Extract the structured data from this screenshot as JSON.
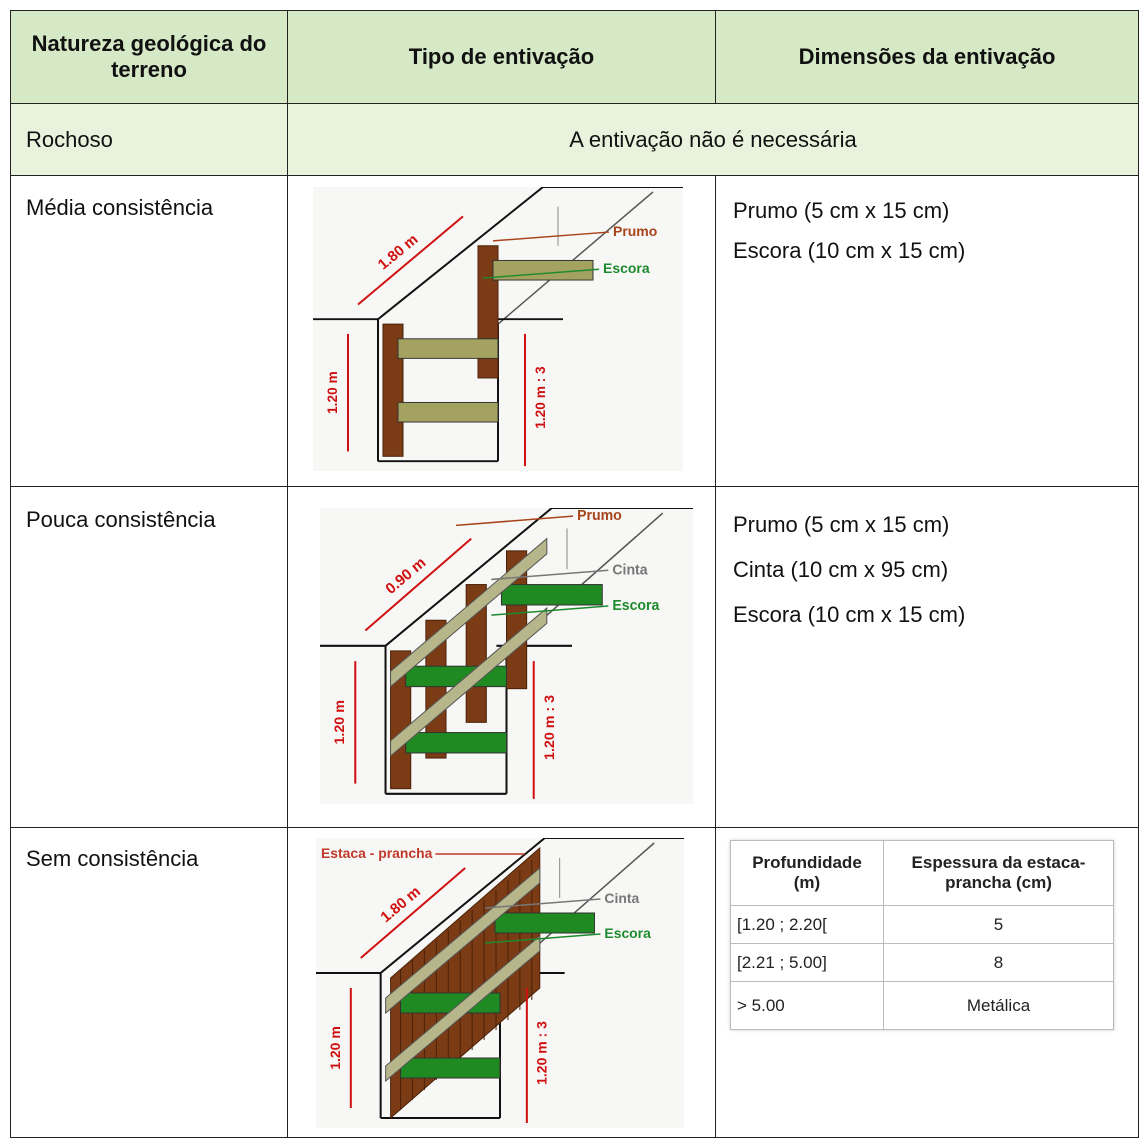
{
  "header": [
    "Natureza geológica do terreno",
    "Tipo de entivação",
    "Dimensões da entivação"
  ],
  "rows": [
    {
      "terrain": "Rochoso",
      "note": "A entivação não é necessária"
    },
    {
      "terrain": "Média consistência",
      "figure": {
        "length": "1.80 m",
        "labels": [
          "Prumo",
          "Escora"
        ],
        "depth": "1.20 m",
        "spacing": "1.20 m : 3"
      },
      "dimensions": [
        "Prumo (5 cm x 15 cm)",
        "Escora (10 cm x 15 cm)"
      ]
    },
    {
      "terrain": "Pouca consistência",
      "figure": {
        "length": "0.90 m",
        "labels": [
          "Prumo",
          "Cinta",
          "Escora"
        ],
        "depth": "1.20 m",
        "spacing": "1.20 m : 3"
      },
      "dimensions": [
        "Prumo (5 cm x 15 cm)",
        "Cinta (10 cm x 95 cm)",
        "Escora (10 cm x 15 cm)"
      ]
    },
    {
      "terrain": "Sem consistência",
      "figure": {
        "length": "1.80 m",
        "labels": [
          "Estaca - prancha",
          "Cinta",
          "Escora"
        ],
        "depth": "1.20 m",
        "spacing": "1.20 m : 3"
      },
      "dimensions_table": {
        "header": [
          "Profundidade (m)",
          "Espessura da estaca-prancha (cm)"
        ],
        "rows": [
          [
            "[1.20 ; 2.20[",
            "5"
          ],
          [
            "[2.21 ; 5.00]",
            "8"
          ],
          [
            "> 5.00",
            "Metálica"
          ]
        ]
      }
    }
  ]
}
